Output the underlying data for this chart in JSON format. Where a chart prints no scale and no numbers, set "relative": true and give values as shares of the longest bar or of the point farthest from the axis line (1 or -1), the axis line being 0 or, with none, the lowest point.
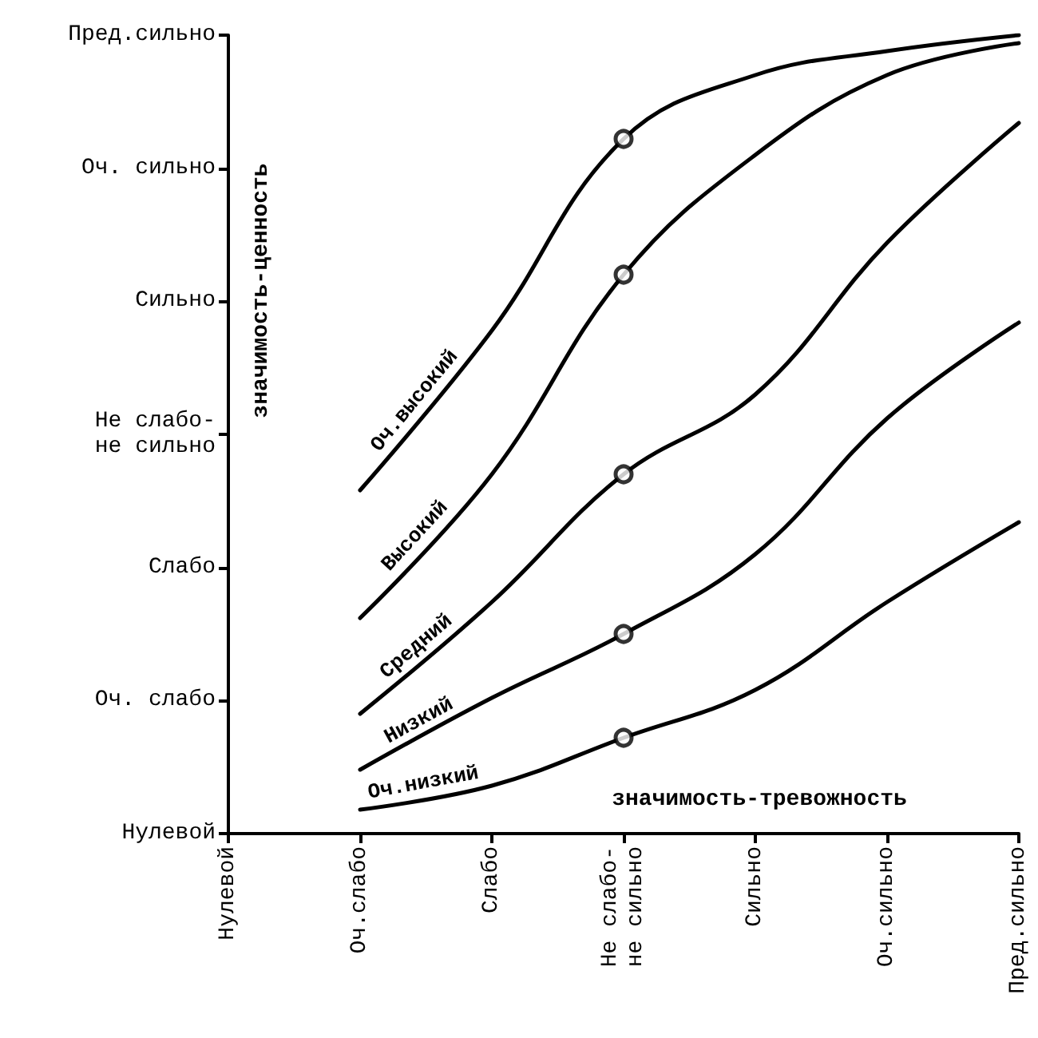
{
  "chart_data": {
    "type": "line",
    "xlabel": "значимость-тревожность",
    "ylabel": "значимость-ценность",
    "relative": true,
    "categories": [
      "Нулевой",
      "Оч.слабо",
      "Слабо",
      "Не слабо-\nне сильно",
      "Сильно",
      "Оч.сильно",
      "Пред.сильно"
    ],
    "annotations": [
      "Нулевой",
      "Оч. слабо",
      "Слабо",
      "Не слабо-\nне сильно",
      "Сильно",
      "Оч. сильно",
      "Пред.сильно"
    ],
    "series": [
      {
        "name": "Оч.высокий",
        "color": "#000000",
        "values": [
          null,
          0.43,
          0.63,
          0.87,
          0.95,
          0.98,
          1
        ]
      },
      {
        "name": "Высокий",
        "color": "#000000",
        "values": [
          null,
          0.27,
          0.45,
          0.7,
          0.85,
          0.95,
          0.99
        ]
      },
      {
        "name": "Средний",
        "color": "#000000",
        "values": [
          null,
          0.15,
          0.29,
          0.45,
          0.55,
          0.74,
          0.89
        ]
      },
      {
        "name": "Низкий",
        "color": "#000000",
        "values": [
          null,
          0.08,
          0.17,
          0.25,
          0.35,
          0.52,
          0.64
        ]
      },
      {
        "name": "Оч.низкий",
        "color": "#000000",
        "values": [
          null,
          0.03,
          0.06,
          0.12,
          0.18,
          0.29,
          0.39
        ]
      },
      {
        "type": "scatter",
        "marker": "circle",
        "color": "#000000",
        "x": [
          "Не слабо-\nне сильно",
          "Не слабо-\nне сильно",
          "Не слабо-\nне сильно",
          "Не слабо-\nне сильно",
          "Не слабо-\nне сильно"
        ],
        "values": [
          0.87,
          0.7,
          0.45,
          0.25,
          0.12
        ]
      }
    ],
    "marker": "none",
    "line_style": "solid",
    "grid": false,
    "legend": false
  }
}
